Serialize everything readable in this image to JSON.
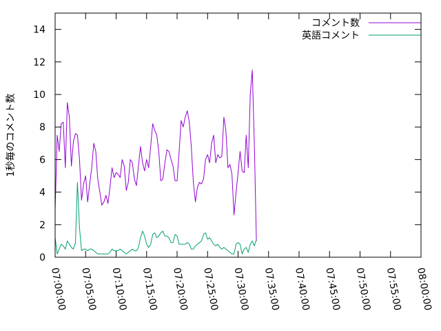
{
  "chart_data": {
    "type": "line",
    "ylabel": "1秒毎のコメント数",
    "xlabel": "",
    "title": "",
    "grid": false,
    "legend_position": "top-right",
    "xlim": [
      "07:00:00",
      "08:00:00"
    ],
    "ylim": [
      0,
      15
    ],
    "x_ticks": [
      "07:00:00",
      "07:05:00",
      "07:10:00",
      "07:15:00",
      "07:20:00",
      "07:25:00",
      "07:30:00",
      "07:35:00",
      "07:40:00",
      "07:45:00",
      "07:50:00",
      "07:55:00",
      "08:00:00"
    ],
    "y_ticks": [
      0,
      2,
      4,
      6,
      8,
      10,
      12,
      14
    ],
    "series": [
      {
        "name": "コメント数",
        "color": "#9400d3",
        "points": [
          [
            "07:00:00",
            2.9
          ],
          [
            "07:00:20",
            7.5
          ],
          [
            "07:00:40",
            6.5
          ],
          [
            "07:01:00",
            8.2
          ],
          [
            "07:01:20",
            8.3
          ],
          [
            "07:01:40",
            5.5
          ],
          [
            "07:02:00",
            9.5
          ],
          [
            "07:02:20",
            8.6
          ],
          [
            "07:02:40",
            5.6
          ],
          [
            "07:03:00",
            7.1
          ],
          [
            "07:03:20",
            7.6
          ],
          [
            "07:03:40",
            7.5
          ],
          [
            "07:04:00",
            6.0
          ],
          [
            "07:04:20",
            3.5
          ],
          [
            "07:04:40",
            4.5
          ],
          [
            "07:05:00",
            5.0
          ],
          [
            "07:05:20",
            3.4
          ],
          [
            "07:05:40",
            4.5
          ],
          [
            "07:06:00",
            5.5
          ],
          [
            "07:06:20",
            7.0
          ],
          [
            "07:06:40",
            6.5
          ],
          [
            "07:07:00",
            4.8
          ],
          [
            "07:07:20",
            4.0
          ],
          [
            "07:07:40",
            3.2
          ],
          [
            "07:08:00",
            3.4
          ],
          [
            "07:08:20",
            3.8
          ],
          [
            "07:08:40",
            3.3
          ],
          [
            "07:09:00",
            4.3
          ],
          [
            "07:09:20",
            5.5
          ],
          [
            "07:09:40",
            4.9
          ],
          [
            "07:10:00",
            5.2
          ],
          [
            "07:10:20",
            5.1
          ],
          [
            "07:10:40",
            4.9
          ],
          [
            "07:11:00",
            6.0
          ],
          [
            "07:11:20",
            5.6
          ],
          [
            "07:11:40",
            4.1
          ],
          [
            "07:12:00",
            4.6
          ],
          [
            "07:12:20",
            6.0
          ],
          [
            "07:12:40",
            5.8
          ],
          [
            "07:13:00",
            4.8
          ],
          [
            "07:13:20",
            4.4
          ],
          [
            "07:13:40",
            5.6
          ],
          [
            "07:14:00",
            6.8
          ],
          [
            "07:14:20",
            5.8
          ],
          [
            "07:14:40",
            5.3
          ],
          [
            "07:15:00",
            6.0
          ],
          [
            "07:15:20",
            5.5
          ],
          [
            "07:15:40",
            6.8
          ],
          [
            "07:16:00",
            8.2
          ],
          [
            "07:16:20",
            7.8
          ],
          [
            "07:16:40",
            7.5
          ],
          [
            "07:17:00",
            6.5
          ],
          [
            "07:17:20",
            4.7
          ],
          [
            "07:17:40",
            4.8
          ],
          [
            "07:18:00",
            5.8
          ],
          [
            "07:18:20",
            6.6
          ],
          [
            "07:18:40",
            6.5
          ],
          [
            "07:19:00",
            6.0
          ],
          [
            "07:19:20",
            5.6
          ],
          [
            "07:19:40",
            4.7
          ],
          [
            "07:20:00",
            4.7
          ],
          [
            "07:20:20",
            6.5
          ],
          [
            "07:20:40",
            8.4
          ],
          [
            "07:21:00",
            8.0
          ],
          [
            "07:21:20",
            8.6
          ],
          [
            "07:21:40",
            9.0
          ],
          [
            "07:22:00",
            8.3
          ],
          [
            "07:22:20",
            6.8
          ],
          [
            "07:22:40",
            4.6
          ],
          [
            "07:23:00",
            3.4
          ],
          [
            "07:23:20",
            4.3
          ],
          [
            "07:23:40",
            4.6
          ],
          [
            "07:24:00",
            4.5
          ],
          [
            "07:24:20",
            4.8
          ],
          [
            "07:24:40",
            6.0
          ],
          [
            "07:25:00",
            6.3
          ],
          [
            "07:25:20",
            5.8
          ],
          [
            "07:25:40",
            7.0
          ],
          [
            "07:26:00",
            7.5
          ],
          [
            "07:26:20",
            5.8
          ],
          [
            "07:26:40",
            6.3
          ],
          [
            "07:27:00",
            6.1
          ],
          [
            "07:27:20",
            6.2
          ],
          [
            "07:27:40",
            8.6
          ],
          [
            "07:28:00",
            7.8
          ],
          [
            "07:28:20",
            5.5
          ],
          [
            "07:28:40",
            5.7
          ],
          [
            "07:29:00",
            5.1
          ],
          [
            "07:29:20",
            2.6
          ],
          [
            "07:29:40",
            4.0
          ],
          [
            "07:30:00",
            5.2
          ],
          [
            "07:30:20",
            6.5
          ],
          [
            "07:30:40",
            5.3
          ],
          [
            "07:31:00",
            5.2
          ],
          [
            "07:31:20",
            7.5
          ],
          [
            "07:31:40",
            5.5
          ],
          [
            "07:32:00",
            10.0
          ],
          [
            "07:32:20",
            11.5
          ],
          [
            "07:32:40",
            7.0
          ],
          [
            "07:33:00",
            1.0
          ]
        ]
      },
      {
        "name": "英語コメント",
        "color": "#009e73",
        "points": [
          [
            "07:00:00",
            1.2
          ],
          [
            "07:00:20",
            0.2
          ],
          [
            "07:00:40",
            0.5
          ],
          [
            "07:01:00",
            0.8
          ],
          [
            "07:01:20",
            0.7
          ],
          [
            "07:01:40",
            0.5
          ],
          [
            "07:02:00",
            1.0
          ],
          [
            "07:02:20",
            0.8
          ],
          [
            "07:02:40",
            0.6
          ],
          [
            "07:03:00",
            0.5
          ],
          [
            "07:03:20",
            0.9
          ],
          [
            "07:03:40",
            4.6
          ],
          [
            "07:04:00",
            1.8
          ],
          [
            "07:04:20",
            0.4
          ],
          [
            "07:04:40",
            0.5
          ],
          [
            "07:05:00",
            0.5
          ],
          [
            "07:05:20",
            0.4
          ],
          [
            "07:05:40",
            0.5
          ],
          [
            "07:06:00",
            0.5
          ],
          [
            "07:06:20",
            0.4
          ],
          [
            "07:06:40",
            0.3
          ],
          [
            "07:07:00",
            0.2
          ],
          [
            "07:07:20",
            0.2
          ],
          [
            "07:07:40",
            0.2
          ],
          [
            "07:08:00",
            0.2
          ],
          [
            "07:08:20",
            0.2
          ],
          [
            "07:08:40",
            0.2
          ],
          [
            "07:09:00",
            0.3
          ],
          [
            "07:09:20",
            0.5
          ],
          [
            "07:09:40",
            0.4
          ],
          [
            "07:10:00",
            0.4
          ],
          [
            "07:10:20",
            0.4
          ],
          [
            "07:10:40",
            0.5
          ],
          [
            "07:11:00",
            0.4
          ],
          [
            "07:11:20",
            0.3
          ],
          [
            "07:11:40",
            0.2
          ],
          [
            "07:12:00",
            0.3
          ],
          [
            "07:12:20",
            0.4
          ],
          [
            "07:12:40",
            0.5
          ],
          [
            "07:13:00",
            0.4
          ],
          [
            "07:13:20",
            0.4
          ],
          [
            "07:13:40",
            0.6
          ],
          [
            "07:14:00",
            1.2
          ],
          [
            "07:14:20",
            1.6
          ],
          [
            "07:14:40",
            1.3
          ],
          [
            "07:15:00",
            0.8
          ],
          [
            "07:15:20",
            0.6
          ],
          [
            "07:15:40",
            0.8
          ],
          [
            "07:16:00",
            1.4
          ],
          [
            "07:16:20",
            1.5
          ],
          [
            "07:16:40",
            1.2
          ],
          [
            "07:17:00",
            1.3
          ],
          [
            "07:17:20",
            1.5
          ],
          [
            "07:17:40",
            1.6
          ],
          [
            "07:18:00",
            1.3
          ],
          [
            "07:18:20",
            1.3
          ],
          [
            "07:18:40",
            1.2
          ],
          [
            "07:19:00",
            0.9
          ],
          [
            "07:19:20",
            0.9
          ],
          [
            "07:19:40",
            1.4
          ],
          [
            "07:20:00",
            1.3
          ],
          [
            "07:20:20",
            0.8
          ],
          [
            "07:20:40",
            0.8
          ],
          [
            "07:21:00",
            0.8
          ],
          [
            "07:21:20",
            0.8
          ],
          [
            "07:21:40",
            0.9
          ],
          [
            "07:22:00",
            0.8
          ],
          [
            "07:22:20",
            0.5
          ],
          [
            "07:22:40",
            0.5
          ],
          [
            "07:23:00",
            0.7
          ],
          [
            "07:23:20",
            0.8
          ],
          [
            "07:23:40",
            0.9
          ],
          [
            "07:24:00",
            1.0
          ],
          [
            "07:24:20",
            1.4
          ],
          [
            "07:24:40",
            1.5
          ],
          [
            "07:25:00",
            1.1
          ],
          [
            "07:25:20",
            1.2
          ],
          [
            "07:25:40",
            1.0
          ],
          [
            "07:26:00",
            0.8
          ],
          [
            "07:26:20",
            0.7
          ],
          [
            "07:26:40",
            0.8
          ],
          [
            "07:27:00",
            0.6
          ],
          [
            "07:27:20",
            0.5
          ],
          [
            "07:27:40",
            0.6
          ],
          [
            "07:28:00",
            0.5
          ],
          [
            "07:28:20",
            0.4
          ],
          [
            "07:28:40",
            0.3
          ],
          [
            "07:29:00",
            0.2
          ],
          [
            "07:29:20",
            0.2
          ],
          [
            "07:29:40",
            0.8
          ],
          [
            "07:30:00",
            0.9
          ],
          [
            "07:30:20",
            0.8
          ],
          [
            "07:30:40",
            0.2
          ],
          [
            "07:31:00",
            0.5
          ],
          [
            "07:31:20",
            0.6
          ],
          [
            "07:31:40",
            0.3
          ],
          [
            "07:32:00",
            0.8
          ],
          [
            "07:32:20",
            1.0
          ],
          [
            "07:32:40",
            0.7
          ],
          [
            "07:33:00",
            1.1
          ]
        ]
      }
    ]
  }
}
